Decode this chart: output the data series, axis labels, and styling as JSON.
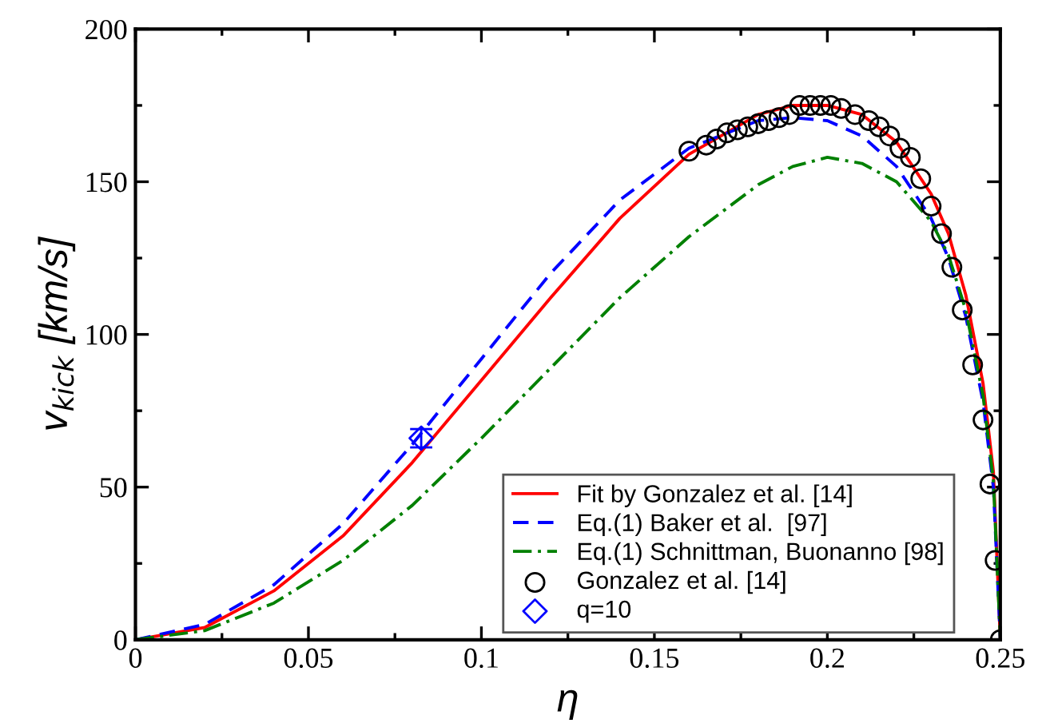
{
  "chart_data": {
    "type": "line",
    "xlabel": "η",
    "ylabel": "v$_{kick}$ [km/s]",
    "xlim": [
      0,
      0.25
    ],
    "ylim": [
      0,
      200
    ],
    "xticks": [
      0,
      {
        "value": 0.025,
        "label": null
      },
      0.05,
      {
        "value": 0.075,
        "label": null
      },
      0.1,
      {
        "value": 0.125,
        "label": null
      },
      0.15,
      {
        "value": 0.175,
        "label": null
      },
      0.2,
      {
        "value": 0.225,
        "label": null
      },
      0.25
    ],
    "yticks": [
      0,
      {
        "value": 25,
        "label": null
      },
      50,
      {
        "value": 75,
        "label": null
      },
      100,
      {
        "value": 125,
        "label": null
      },
      150,
      {
        "value": 175,
        "label": null
      },
      200
    ],
    "grid": false,
    "legend": "bottom right",
    "series": [
      {
        "name": "Fit by Gonzalez et al. [14]",
        "color": "#ff0000",
        "line_style": "solid",
        "marker": "none",
        "x": [
          0,
          0.02,
          0.04,
          0.06,
          0.08,
          0.1,
          0.12,
          0.14,
          0.16,
          0.18,
          0.19,
          0.2,
          0.21,
          0.22,
          0.23,
          0.235,
          0.24,
          0.245,
          0.248,
          0.25
        ],
        "values": [
          0,
          4,
          16,
          34,
          58,
          85,
          112,
          138,
          159,
          172,
          175,
          175,
          172,
          163,
          146,
          133,
          113,
          84,
          55,
          0
        ]
      },
      {
        "name": "Eq.(1) Baker et al.  [97]",
        "color": "#0000ff",
        "line_style": "dashed",
        "marker": "none",
        "x": [
          0,
          0.02,
          0.04,
          0.06,
          0.08,
          0.1,
          0.12,
          0.14,
          0.16,
          0.18,
          0.19,
          0.2,
          0.21,
          0.22,
          0.23,
          0.235,
          0.24,
          0.245,
          0.248,
          0.25
        ],
        "values": [
          0,
          5,
          18,
          38,
          64,
          92,
          120,
          144,
          161,
          170,
          171,
          170,
          165,
          155,
          138,
          125,
          106,
          78,
          50,
          0
        ]
      },
      {
        "name": "Eq.(1) Schnittman, Buonanno [98]",
        "color": "#008000",
        "line_style": "dashdot",
        "marker": "none",
        "x": [
          0,
          0.02,
          0.04,
          0.06,
          0.08,
          0.1,
          0.12,
          0.14,
          0.16,
          0.18,
          0.19,
          0.2,
          0.21,
          0.22,
          0.23,
          0.235,
          0.24,
          0.245,
          0.248,
          0.25
        ],
        "values": [
          0,
          3,
          12,
          26,
          44,
          66,
          89,
          112,
          132,
          149,
          155,
          158,
          156,
          150,
          137,
          126,
          108,
          80,
          52,
          0
        ]
      },
      {
        "name": "Gonzalez et al. [14]",
        "type": "scatter",
        "color": "#000000",
        "marker": "circle",
        "x": [
          0.16,
          0.165,
          0.168,
          0.171,
          0.174,
          0.177,
          0.18,
          0.183,
          0.186,
          0.189,
          0.192,
          0.195,
          0.198,
          0.201,
          0.204,
          0.208,
          0.212,
          0.215,
          0.218,
          0.221,
          0.224,
          0.227,
          0.23,
          0.233,
          0.236,
          0.239,
          0.242,
          0.245,
          0.247,
          0.2485,
          0.25
        ],
        "values": [
          160,
          162,
          164,
          166,
          167,
          168,
          169,
          170,
          171,
          172,
          175,
          175,
          175,
          175,
          174,
          172,
          170,
          168,
          165,
          161,
          158,
          151,
          142,
          133,
          122,
          108,
          90,
          72,
          51,
          26,
          0
        ]
      },
      {
        "name": "q=10",
        "type": "scatter",
        "color": "#0000ff",
        "marker": "diamond",
        "x": [
          0.0826
        ],
        "values": [
          66
        ],
        "errors": [
          3
        ]
      }
    ]
  }
}
